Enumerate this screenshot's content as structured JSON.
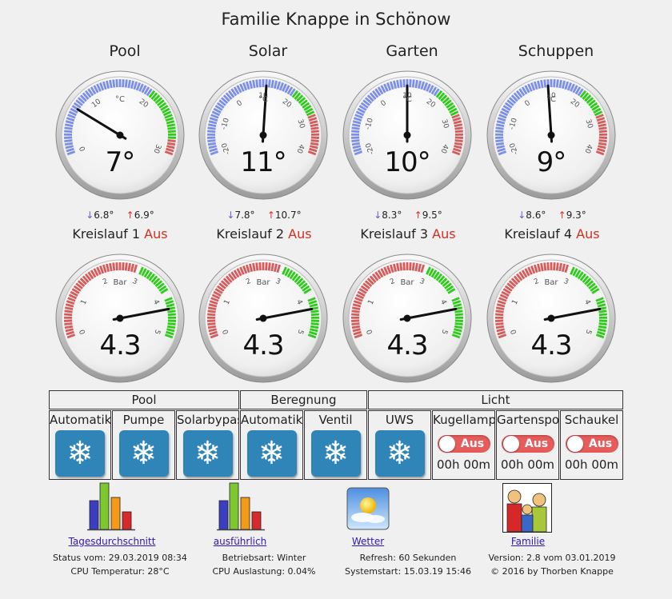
{
  "title": "Familie Knappe in Schönow",
  "temperature_gauges": [
    {
      "name": "Pool",
      "value": "7°",
      "reading": 7,
      "unit": "°C",
      "ticks": [
        "0",
        "10",
        "20",
        "30"
      ],
      "min": "6.8°",
      "max": "6.9°",
      "circuit": "Kreislauf 1",
      "circuit_state": "Aus"
    },
    {
      "name": "Solar",
      "value": "11°",
      "reading": 11,
      "unit": "°C",
      "ticks": [
        "-20",
        "-10",
        "0",
        "10",
        "20",
        "30",
        "40"
      ],
      "min": "7.8°",
      "max": "10.7°",
      "circuit": "Kreislauf 2",
      "circuit_state": "Aus"
    },
    {
      "name": "Garten",
      "value": "10°",
      "reading": 10,
      "unit": "°C",
      "ticks": [
        "-20",
        "-10",
        "0",
        "10",
        "20",
        "30",
        "40"
      ],
      "min": "8.3°",
      "max": "9.5°",
      "circuit": "Kreislauf 3",
      "circuit_state": "Aus"
    },
    {
      "name": "Schuppen",
      "value": "9°",
      "reading": 9,
      "unit": "°C",
      "ticks": [
        "-20",
        "-10",
        "0",
        "10",
        "20",
        "30",
        "40"
      ],
      "min": "8.6°",
      "max": "9.3°",
      "circuit": "Kreislauf 4",
      "circuit_state": "Aus"
    }
  ],
  "pressure_gauges": [
    {
      "value": "4.3",
      "reading": 4.3,
      "unit": "Bar",
      "ticks": [
        "0",
        "1",
        "2",
        "3",
        "4",
        "5"
      ]
    },
    {
      "value": "4.3",
      "reading": 4.3,
      "unit": "Bar",
      "ticks": [
        "0",
        "1",
        "2",
        "3",
        "4",
        "5"
      ]
    },
    {
      "value": "4.3",
      "reading": 4.3,
      "unit": "Bar",
      "ticks": [
        "0",
        "1",
        "2",
        "3",
        "4",
        "5"
      ]
    },
    {
      "value": "4.3",
      "reading": 4.3,
      "unit": "Bar",
      "ticks": [
        "0",
        "1",
        "2",
        "3",
        "4",
        "5"
      ]
    }
  ],
  "groups": {
    "pool": "Pool",
    "beregnung": "Beregnung",
    "licht": "Licht"
  },
  "controls": {
    "pool_automatik": "Automatik",
    "pool_pumpe": "Pumpe",
    "pool_solarbypass": "Solarbypass",
    "beregnung_automatik": "Automatik",
    "beregnung_ventil": "Ventil",
    "licht_uws": "UWS",
    "kugellampe": {
      "label": "Kugellampe",
      "state": "Aus",
      "timer": "00h 00m"
    },
    "gartenspot": {
      "label": "Gartenspot",
      "state": "Aus",
      "timer": "00h 00m"
    },
    "schaukel": {
      "label": "Schaukel",
      "state": "Aus",
      "timer": "00h 00m"
    },
    "snow_icon": "snowflake-icon"
  },
  "footer": {
    "links": [
      "Tagesdurchschnitt",
      "ausführlich",
      "Wetter",
      "Familie"
    ],
    "status": "Status vom: 29.03.2019 08:34",
    "cpu_temp": "CPU Temperatur: 28°C",
    "mode": "Betriebsart: Winter",
    "cpu_load": "CPU Auslastung: 0.04%",
    "refresh": "Refresh: 60 Sekunden",
    "systemstart": "Systemstart: 15.03.19 15:46",
    "version": "Version: 2.8 vom 03.01.2019",
    "copyright": "© 2016 by Thorben Knappe"
  },
  "colors": {
    "cold": "#7b8fe8",
    "ok": "#2ecc1a",
    "hot": "#d65b5b",
    "aus": "#d03020",
    "link": "#3018b0"
  }
}
